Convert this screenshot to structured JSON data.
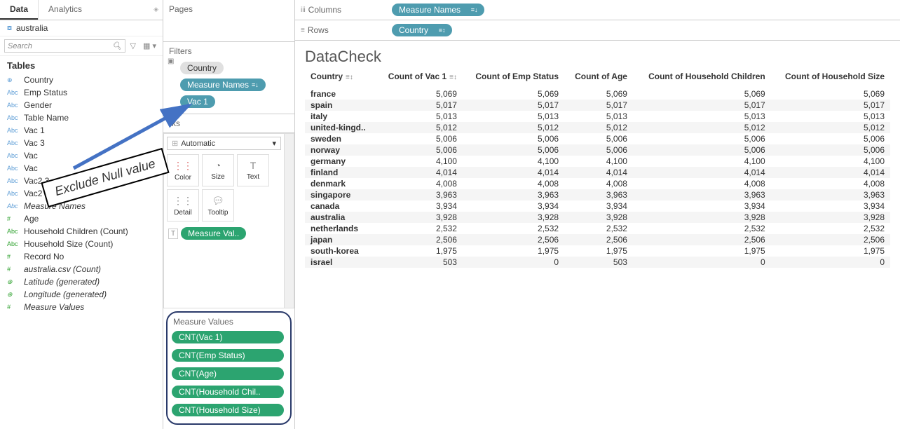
{
  "sidebar": {
    "tabs": {
      "data": "Data",
      "analytics": "Analytics"
    },
    "datasource": "australia",
    "search_placeholder": "Search",
    "section": "Tables",
    "fields": [
      {
        "icon": "⊕",
        "cls": "dim",
        "label": "Country"
      },
      {
        "icon": "Abc",
        "cls": "dim",
        "label": "Emp Status"
      },
      {
        "icon": "Abc",
        "cls": "dim",
        "label": "Gender"
      },
      {
        "icon": "Abc",
        "cls": "dim",
        "label": "Table Name"
      },
      {
        "icon": "Abc",
        "cls": "dim",
        "label": "Vac 1"
      },
      {
        "icon": "Abc",
        "cls": "dim",
        "label": "Vac 3"
      },
      {
        "icon": "Abc",
        "cls": "dim",
        "label": "Vac"
      },
      {
        "icon": "Abc",
        "cls": "dim",
        "label": "Vac"
      },
      {
        "icon": "Abc",
        "cls": "dim",
        "label": "Vac2 3"
      },
      {
        "icon": "Abc",
        "cls": "dim",
        "label": "Vac2 6"
      },
      {
        "icon": "Abc",
        "cls": "dim",
        "label": "Measure Names",
        "italic": true
      },
      {
        "icon": "#",
        "cls": "meas",
        "label": "Age"
      },
      {
        "icon": "Abc",
        "cls": "meas",
        "label": "Household Children (Count)"
      },
      {
        "icon": "Abc",
        "cls": "meas",
        "label": "Household Size (Count)"
      },
      {
        "icon": "#",
        "cls": "meas",
        "label": "Record No"
      },
      {
        "icon": "#",
        "cls": "meas",
        "label": "australia.csv (Count)",
        "italic": true
      },
      {
        "icon": "⊕",
        "cls": "meas",
        "label": "Latitude (generated)",
        "italic": true
      },
      {
        "icon": "⊕",
        "cls": "meas",
        "label": "Longitude (generated)",
        "italic": true
      },
      {
        "icon": "#",
        "cls": "meas",
        "label": "Measure Values",
        "italic": true
      }
    ]
  },
  "shelves": {
    "pages": "Pages",
    "filters": "Filters",
    "filters_items": {
      "country": "Country",
      "measure_names": "Measure Names",
      "vac1": "Vac 1"
    },
    "marks": "Marks",
    "auto": "Automatic",
    "btns": {
      "color": "Color",
      "size": "Size",
      "text": "Text",
      "detail": "Detail",
      "tooltip": "Tooltip"
    },
    "mv_pill": "Measure Val..",
    "mv_title": "Measure Values",
    "mv_items": [
      "CNT(Vac 1)",
      "CNT(Emp Status)",
      "CNT(Age)",
      "CNT(Household Chil..",
      "CNT(Household Size)"
    ]
  },
  "top": {
    "columns": "Columns",
    "rows": "Rows",
    "col_pill": "Measure Names",
    "row_pill": "Country"
  },
  "viz": {
    "title": "DataCheck",
    "headers": [
      "Country",
      "Count of Vac 1",
      "Count of Emp Status",
      "Count of Age",
      "Count of Household Children",
      "Count of Household Size"
    ],
    "rows": [
      [
        "france",
        "5,069",
        "5,069",
        "5,069",
        "5,069",
        "5,069"
      ],
      [
        "spain",
        "5,017",
        "5,017",
        "5,017",
        "5,017",
        "5,017"
      ],
      [
        "italy",
        "5,013",
        "5,013",
        "5,013",
        "5,013",
        "5,013"
      ],
      [
        "united-kingd..",
        "5,012",
        "5,012",
        "5,012",
        "5,012",
        "5,012"
      ],
      [
        "sweden",
        "5,006",
        "5,006",
        "5,006",
        "5,006",
        "5,006"
      ],
      [
        "norway",
        "5,006",
        "5,006",
        "5,006",
        "5,006",
        "5,006"
      ],
      [
        "germany",
        "4,100",
        "4,100",
        "4,100",
        "4,100",
        "4,100"
      ],
      [
        "finland",
        "4,014",
        "4,014",
        "4,014",
        "4,014",
        "4,014"
      ],
      [
        "denmark",
        "4,008",
        "4,008",
        "4,008",
        "4,008",
        "4,008"
      ],
      [
        "singapore",
        "3,963",
        "3,963",
        "3,963",
        "3,963",
        "3,963"
      ],
      [
        "canada",
        "3,934",
        "3,934",
        "3,934",
        "3,934",
        "3,934"
      ],
      [
        "australia",
        "3,928",
        "3,928",
        "3,928",
        "3,928",
        "3,928"
      ],
      [
        "netherlands",
        "2,532",
        "2,532",
        "2,532",
        "2,532",
        "2,532"
      ],
      [
        "japan",
        "2,506",
        "2,506",
        "2,506",
        "2,506",
        "2,506"
      ],
      [
        "south-korea",
        "1,975",
        "1,975",
        "1,975",
        "1,975",
        "1,975"
      ],
      [
        "israel",
        "503",
        "0",
        "503",
        "0",
        "0"
      ]
    ]
  },
  "annotation": "Exclude Null value"
}
